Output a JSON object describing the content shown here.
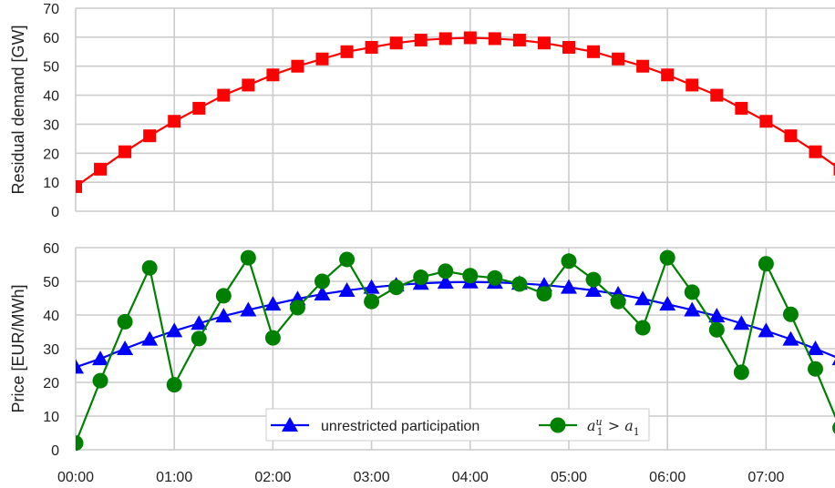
{
  "chart_data": [
    {
      "type": "line",
      "ylabel": "Residual demand [GW]",
      "ylim": [
        0,
        70
      ],
      "yticks": [
        "0",
        "10",
        "20",
        "30",
        "40",
        "50",
        "60",
        "70"
      ],
      "xtick_labels": [],
      "grid": true,
      "x": [
        0,
        0.25,
        0.5,
        0.75,
        1,
        1.25,
        1.5,
        1.75,
        2,
        2.25,
        2.5,
        2.75,
        3,
        3.25,
        3.5,
        3.75,
        4,
        4.25,
        4.5,
        4.75,
        5,
        5.25,
        5.5,
        5.75,
        6,
        6.25,
        6.5,
        6.75,
        7,
        7.25,
        7.5,
        7.75
      ],
      "series": [
        {
          "color": "#ff0000",
          "marker": "square",
          "values": [
            8.5,
            14.5,
            20.5,
            26,
            31,
            35.5,
            40,
            43.5,
            47,
            50,
            52.5,
            55,
            56.5,
            58,
            59,
            59.5,
            59.8,
            59.5,
            59,
            58,
            56.5,
            55,
            52.5,
            50,
            47,
            43.5,
            40,
            35.5,
            31,
            26,
            20.5,
            14.5
          ]
        }
      ]
    },
    {
      "type": "line",
      "ylabel": "Price [EUR/MWh]",
      "ylim": [
        0,
        60
      ],
      "yticks": [
        "0",
        "10",
        "20",
        "30",
        "40",
        "50",
        "60"
      ],
      "xtick_labels": [
        "00:00",
        "01:00",
        "02:00",
        "03:00",
        "04:00",
        "05:00",
        "06:00",
        "07:00"
      ],
      "grid": true,
      "legend_position": "bottom-center",
      "x": [
        0,
        0.25,
        0.5,
        0.75,
        1,
        1.25,
        1.5,
        1.75,
        2,
        2.25,
        2.5,
        2.75,
        3,
        3.25,
        3.5,
        3.75,
        4,
        4.25,
        4.5,
        4.75,
        5,
        5.25,
        5.5,
        5.75,
        6,
        6.25,
        6.5,
        6.75,
        7,
        7.25,
        7.5,
        7.75
      ],
      "series": [
        {
          "name": "unrestricted participation",
          "color": "#0000ff",
          "marker": "triangle",
          "values": [
            24.5,
            27,
            30,
            32.8,
            35.3,
            37.5,
            39.7,
            41.5,
            43.2,
            44.8,
            46.2,
            47.3,
            48.2,
            48.9,
            49.4,
            49.7,
            49.8,
            49.7,
            49.4,
            48.9,
            48.2,
            47.3,
            46.2,
            44.8,
            43.2,
            41.5,
            39.7,
            37.5,
            35.3,
            32.8,
            30,
            27
          ]
        },
        {
          "name_math": {
            "base": "a",
            "sup": "u",
            "sub": "1",
            "op": ">",
            "rhs_base": "a",
            "rhs_sub": "1"
          },
          "color": "#008000",
          "marker": "circle",
          "values": [
            2,
            20.5,
            38,
            54,
            19.3,
            33,
            45.7,
            57,
            33.2,
            42.2,
            50,
            56.5,
            44,
            48.2,
            51.2,
            53,
            51.7,
            51,
            49.2,
            46.3,
            56,
            50.5,
            44,
            36.2,
            57,
            46.8,
            35.6,
            23,
            55.2,
            40.2,
            24,
            6.5
          ]
        }
      ]
    }
  ]
}
